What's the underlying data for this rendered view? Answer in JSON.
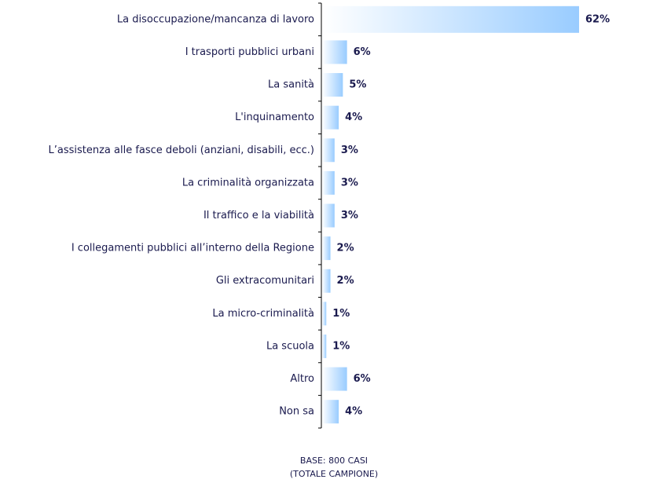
{
  "chart_data": {
    "type": "bar",
    "orientation": "horizontal",
    "categories": [
      "La disoccupazione/mancanza di lavoro",
      "I trasporti pubblici urbani",
      "La sanità",
      "L'inquinamento",
      "L’assistenza alle fasce deboli (anziani, disabili, ecc.)",
      "La criminalità organizzata",
      "Il traffico e la viabilità",
      "I collegamenti pubblici all’interno della Regione",
      "Gli extracomunitari",
      "La micro-criminalità",
      "La scuola",
      "Altro",
      "Non sa"
    ],
    "values": [
      62,
      6,
      5,
      4,
      3,
      3,
      3,
      2,
      2,
      1,
      1,
      6,
      4
    ],
    "value_labels": [
      "62%",
      "6%",
      "5%",
      "4%",
      "3%",
      "3%",
      "3%",
      "2%",
      "2%",
      "1%",
      "1%",
      "6%",
      "4%"
    ],
    "color": "#99ccff",
    "footnote": [
      "BASE: 800 CASI",
      "(TOTALE CAMPIONE)"
    ]
  }
}
